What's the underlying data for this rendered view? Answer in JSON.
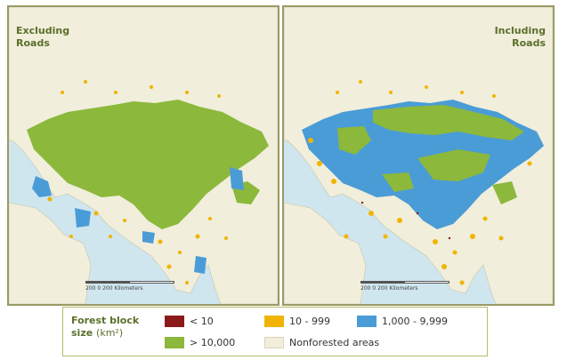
{
  "panels": {
    "left": {
      "title": "Excluding\nRoads"
    },
    "right": {
      "title": "Including\nRoads"
    }
  },
  "scale_bar": {
    "label": "200    0    200  Kilometers"
  },
  "legend": {
    "title": "Forest block size",
    "unit": "(km²)",
    "items": [
      {
        "label": "< 10",
        "color": "#8b1a1a",
        "icon": "dark-red-swatch"
      },
      {
        "label": "10 - 999",
        "color": "#f0b400",
        "icon": "orange-swatch"
      },
      {
        "label": "1,000 - 9,999",
        "color": "#4a9cd6",
        "icon": "blue-swatch"
      },
      {
        "label": "> 10,000",
        "color": "#8cb83c",
        "icon": "green-swatch"
      },
      {
        "label": "Nonforested areas",
        "color": "#f1eedb",
        "icon": "beige-swatch"
      }
    ]
  },
  "colors": {
    "ocean": "#cfe6ef",
    "land": "#f1eedb",
    "border": "#9a9a66"
  }
}
